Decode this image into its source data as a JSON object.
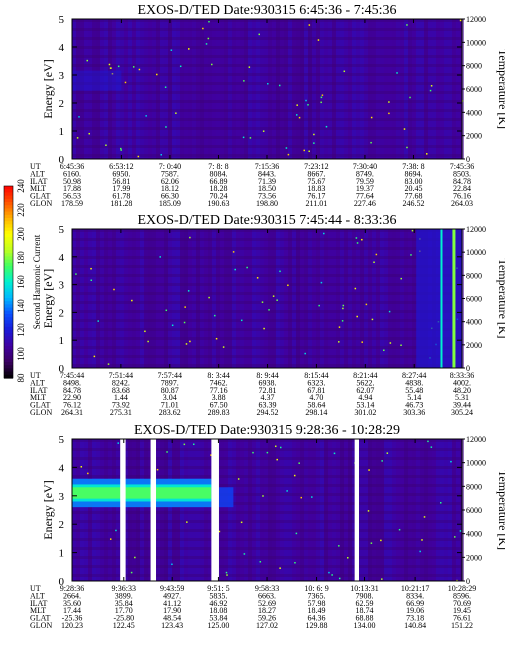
{
  "chart_data": [
    {
      "type": "heatmap",
      "title": "EXOS-D/TED   Date:930315  6:45:36 - 7:45:36",
      "ylabel": "Energy [eV]",
      "ylabel_right": "Temperature [K]",
      "ylim": [
        0,
        5
      ],
      "ylim_right": [
        0,
        12000
      ],
      "yticks": [
        "0",
        "1",
        "2",
        "3",
        "4",
        "5"
      ],
      "yticks_right": [
        "0",
        "2000",
        "4000",
        "6000",
        "8000",
        "10000",
        "12000"
      ],
      "ephemeris": {
        "rows": [
          "UT",
          "ALT",
          "ILAT",
          "MLT",
          "GLAT",
          "GLON"
        ],
        "columns": [
          [
            "6:45:36",
            "6160.",
            "50.98",
            "17.88",
            "56.53",
            "178.59"
          ],
          [
            "6:53:12",
            "6950.",
            "56.81",
            "17.99",
            "61.78",
            "181.28"
          ],
          [
            "7: 0:40",
            "7587.",
            "62.06",
            "18.12",
            "66.30",
            "185.09"
          ],
          [
            "7: 8: 8",
            "8084.",
            "66.89",
            "18.28",
            "70.24",
            "190.63"
          ],
          [
            "7:15:36",
            "8443.",
            "71.39",
            "18.50",
            "73.56",
            "198.80"
          ],
          [
            "7:23:12",
            "8667.",
            "75.67",
            "18.83",
            "76.17",
            "211.01"
          ],
          [
            "7:30:40",
            "8749.",
            "79.59",
            "19.37",
            "77.64",
            "227.46"
          ],
          [
            "7:38: 8",
            "8694.",
            "83.00",
            "20.45",
            "77.68",
            "246.52"
          ],
          [
            "7:45:36",
            "8503.",
            "84.78",
            "22.84",
            "76.16",
            "264.03"
          ]
        ]
      },
      "data_gaps": [],
      "features": [
        {
          "energy_eV": 2.8,
          "ut_start": "6:45:36",
          "ut_end": "6:53:12",
          "level": 120
        }
      ]
    },
    {
      "type": "heatmap",
      "title": "EXOS-D/TED   Date:930315  7:45:44 - 8:33:36",
      "ylabel": "Energy [eV]",
      "ylabel_right": "Temperature [K]",
      "ylim": [
        0,
        5
      ],
      "ylim_right": [
        0,
        12000
      ],
      "yticks": [
        "0",
        "1",
        "2",
        "3",
        "4",
        "5"
      ],
      "yticks_right": [
        "0",
        "2000",
        "4000",
        "6000",
        "8000",
        "10000",
        "12000"
      ],
      "ephemeris": {
        "rows": [
          "UT",
          "ALT",
          "ILAT",
          "MLT",
          "GLAT",
          "GLON"
        ],
        "columns": [
          [
            "7:45:44",
            "8498.",
            "84.78",
            "22.90",
            "76.12",
            "264.31"
          ],
          [
            "7:51:44",
            "8242.",
            "83.68",
            "1.44",
            "73.92",
            "275.31"
          ],
          [
            "7:57:44",
            "7897.",
            "80.87",
            "3.04",
            "71.01",
            "283.62"
          ],
          [
            "8: 3:44",
            "7462.",
            "77.16",
            "3.88",
            "67.50",
            "289.83"
          ],
          [
            "8: 9:44",
            "6938.",
            "72.81",
            "4.37",
            "63.39",
            "294.52"
          ],
          [
            "8:15:44",
            "6323.",
            "67.81",
            "4.70",
            "58.64",
            "298.14"
          ],
          [
            "8:21:44",
            "5622.",
            "62.07",
            "4.94",
            "53.14",
            "301.02"
          ],
          [
            "8:27:44",
            "4838.",
            "55.48",
            "5.14",
            "46.73",
            "303.36"
          ],
          [
            "8:33:36",
            "4002.",
            "48.20",
            "5.31",
            "39.44",
            "305.24"
          ]
        ]
      },
      "data_gaps": [],
      "features": [
        {
          "energy_eV": 2.5,
          "ut_start": "8:27:44",
          "ut_end": "8:33:36",
          "level": 140
        }
      ]
    },
    {
      "type": "heatmap",
      "title": "EXOS-D/TED   Date:930315  9:28:36 - 10:28:29",
      "ylabel": "Energy [eV]",
      "ylabel_right": "Temperature [K]",
      "ylim": [
        0,
        5
      ],
      "ylim_right": [
        0,
        12000
      ],
      "yticks": [
        "0",
        "1",
        "2",
        "3",
        "4",
        "5"
      ],
      "yticks_right": [
        "0",
        "2000",
        "4000",
        "6000",
        "8000",
        "10000",
        "12000"
      ],
      "ephemeris": {
        "rows": [
          "UT",
          "ALT",
          "ILAT",
          "MLT",
          "GLAT",
          "GLON"
        ],
        "columns": [
          [
            "9:28:36",
            "2664.",
            "35.60",
            "17.44",
            "-25.36",
            "120.23"
          ],
          [
            "9:36:33",
            "3899.",
            "35.84",
            "17.70",
            "-25.80",
            "122.45"
          ],
          [
            "9:43:59",
            "4927.",
            "41.12",
            "17.90",
            "48.54",
            "123.43"
          ],
          [
            "9:51: 5",
            "5835.",
            "46.92",
            "18.08",
            "53.84",
            "125.00"
          ],
          [
            "9:58:33",
            "6663.",
            "52.69",
            "18.27",
            "59.26",
            "127.02"
          ],
          [
            "10: 6: 9",
            "7365.",
            "57.98",
            "18.49",
            "64.36",
            "129.88"
          ],
          [
            "10:13:31",
            "7908.",
            "62.59",
            "18.74",
            "68.88",
            "134.00"
          ],
          [
            "10:21:17",
            "8334.",
            "66.99",
            "19.06",
            "73.18",
            "140.84"
          ],
          [
            "10:28:29",
            "8596.",
            "70.69",
            "19.45",
            "76.61",
            "151.22"
          ]
        ]
      },
      "data_gaps": [
        {
          "ut_start": "9:36:00",
          "ut_end": "9:36:50"
        },
        {
          "ut_start": "9:40:40",
          "ut_end": "9:41:30"
        },
        {
          "ut_start": "9:50:00",
          "ut_end": "9:51:10"
        },
        {
          "ut_start": "10:12:00",
          "ut_end": "10:12:40"
        }
      ],
      "features": [
        {
          "energy_eV": 2.0,
          "ut_start": "9:28:36",
          "ut_end": "9:50:00",
          "level": 160
        }
      ]
    }
  ],
  "colorbar": {
    "label": "Second Harmonic Current",
    "ticks": [
      "80",
      "100",
      "120",
      "140",
      "160",
      "180",
      "200",
      "220",
      "240"
    ],
    "range": [
      80,
      240
    ],
    "colors": [
      "#000000",
      "#3a0060",
      "#4000a0",
      "#1a1ad8",
      "#0a50ff",
      "#00b8ff",
      "#00f0d0",
      "#40ff60",
      "#c0ff20",
      "#ffff00",
      "#ffb000",
      "#ff5000",
      "#ff0000"
    ]
  }
}
